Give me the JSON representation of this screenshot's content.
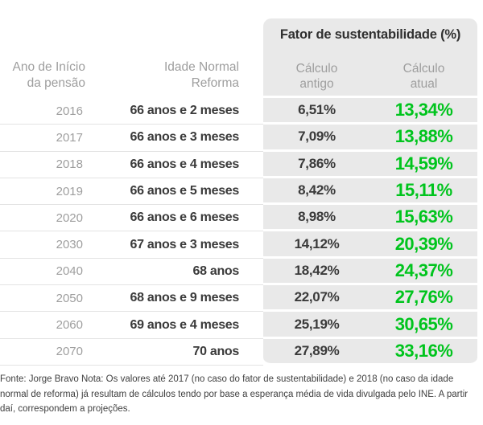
{
  "chart_data": {
    "type": "table",
    "title": "Fator de sustentabilidade (%)",
    "columns": [
      {
        "id": "year",
        "label_lines": [
          "Ano de Início",
          "da pensão"
        ]
      },
      {
        "id": "age",
        "label_lines": [
          "Idade Normal",
          "Reforma"
        ]
      },
      {
        "id": "old",
        "label_lines": [
          "Cálculo",
          "antigo"
        ]
      },
      {
        "id": "new",
        "label_lines": [
          "Cálculo",
          "atual"
        ]
      }
    ],
    "column_group": {
      "label": "Fator de sustentabilidade (%)",
      "spans": [
        "Cálculo antigo",
        "Cálculo atual"
      ]
    },
    "rows": [
      {
        "year": "2016",
        "age": "66 anos e 2 meses",
        "old": "6,51%",
        "new": "13,34%"
      },
      {
        "year": "2017",
        "age": "66 anos e 3 meses",
        "old": "7,09%",
        "new": "13,88%"
      },
      {
        "year": "2018",
        "age": "66 anos e 4 meses",
        "old": "7,86%",
        "new": "14,59%"
      },
      {
        "year": "2019",
        "age": "66 anos e 5 meses",
        "old": "8,42%",
        "new": "15,11%"
      },
      {
        "year": "2020",
        "age": "66 anos e 6 meses",
        "old": "8,98%",
        "new": "15,63%"
      },
      {
        "year": "2030",
        "age": "67 anos e 3 meses",
        "old": "14,12%",
        "new": "20,39%"
      },
      {
        "year": "2040",
        "age": "68 anos",
        "old": "18,42%",
        "new": "24,37%"
      },
      {
        "year": "2050",
        "age": "68 anos e 9 meses",
        "old": "22,07%",
        "new": "27,76%"
      },
      {
        "year": "2060",
        "age": "69 anos e 4 meses",
        "old": "25,19%",
        "new": "30,65%"
      },
      {
        "year": "2070",
        "age": "70 anos",
        "old": "27,89%",
        "new": "33,16%"
      }
    ]
  },
  "footer": {
    "source_note": "Fonte: Jorge Bravo Nota: Os valores até 2017 (no caso do fator de sustentabilidade) e 2018 (no caso da idade normal de reforma) já resultam de cálculos tendo por base a esperança média de vida divulgada pelo INE. A partir daí, correspondem a projeções."
  },
  "colors": {
    "highlight_green": "#00c41d",
    "panel_gray": "#e9e9e9",
    "muted_text": "#9e9e9e",
    "dark_text": "#3a3a3a"
  }
}
